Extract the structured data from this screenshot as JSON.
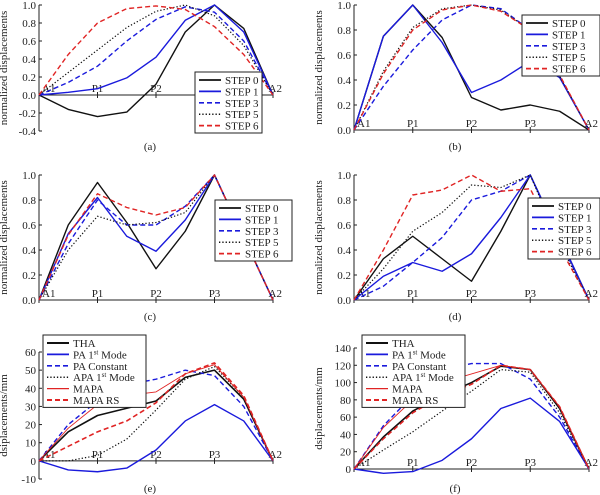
{
  "styles": {
    "STEP 0": {
      "color": "#111111",
      "dash": "solid",
      "width": 1.4
    },
    "STEP 1": {
      "color": "#1a1adc",
      "dash": "solid",
      "width": 1.4
    },
    "STEP 3": {
      "color": "#1a1adc",
      "dash": "dashed",
      "width": 1.4
    },
    "STEP 5": {
      "color": "#111111",
      "dash": "dotted",
      "width": 1.2
    },
    "STEP 6": {
      "color": "#e02424",
      "dash": "dashed",
      "width": 1.4
    },
    "THA": {
      "color": "#111111",
      "dash": "solid",
      "width": 1.6
    },
    "PA 1st Mode": {
      "color": "#1a1adc",
      "dash": "solid",
      "width": 1.4
    },
    "PA Constant": {
      "color": "#1a1adc",
      "dash": "dashed",
      "width": 1.4
    },
    "APA 1st Mode": {
      "color": "#111111",
      "dash": "dotted",
      "width": 1.2
    },
    "MAPA": {
      "color": "#e02424",
      "dash": "solid",
      "width": 0.9
    },
    "MAPA RS": {
      "color": "#e02424",
      "dash": "dashed",
      "width": 1.6
    }
  },
  "chart_data": [
    {
      "panel": "(a)",
      "type": "line",
      "ylabel": "normalized displacements",
      "x": [
        0,
        1,
        2,
        3,
        4,
        5,
        6,
        7,
        8
      ],
      "xticks": [
        {
          "x": 0,
          "label": "A1"
        },
        {
          "x": 2,
          "label": "P1"
        },
        {
          "x": 4,
          "label": "P2"
        },
        {
          "x": 8,
          "label": "A2"
        }
      ],
      "ylim": [
        -0.4,
        1.0
      ],
      "yticks": [
        "-0.4",
        "-0.2",
        "0.0",
        "0.2",
        "0.4",
        "0.6",
        "0.8",
        "1.0"
      ],
      "legend": "bottom-right",
      "series": [
        {
          "name": "STEP 0",
          "values": [
            0,
            -0.16,
            -0.24,
            -0.19,
            0.12,
            0.7,
            1.0,
            0.74,
            0
          ]
        },
        {
          "name": "STEP 1",
          "values": [
            0,
            0.03,
            0.07,
            0.19,
            0.42,
            0.83,
            1.0,
            0.7,
            0
          ]
        },
        {
          "name": "STEP 3",
          "values": [
            0,
            0.14,
            0.32,
            0.6,
            0.84,
            0.98,
            0.92,
            0.6,
            0
          ]
        },
        {
          "name": "STEP 5",
          "values": [
            0,
            0.25,
            0.5,
            0.75,
            0.93,
            1.0,
            0.88,
            0.55,
            0
          ]
        },
        {
          "name": "STEP 6",
          "values": [
            0,
            0.45,
            0.8,
            0.96,
            0.99,
            0.95,
            0.76,
            0.45,
            0
          ]
        }
      ]
    },
    {
      "panel": "(b)",
      "type": "line",
      "ylabel": "normalized displacements",
      "x": [
        0,
        1,
        2,
        3,
        4,
        5,
        6,
        7,
        8
      ],
      "xticks": [
        {
          "x": 0,
          "label": "A1"
        },
        {
          "x": 2,
          "label": "P1"
        },
        {
          "x": 4,
          "label": "P2"
        },
        {
          "x": 6,
          "label": "P3"
        },
        {
          "x": 8,
          "label": "A2"
        }
      ],
      "ylim": [
        0,
        1.0
      ],
      "yticks": [
        "0.0",
        "0.2",
        "0.4",
        "0.6",
        "0.8",
        "1.0"
      ],
      "legend": "top-right",
      "series": [
        {
          "name": "STEP 0",
          "values": [
            0,
            0.75,
            1.0,
            0.74,
            0.26,
            0.16,
            0.2,
            0.15,
            0
          ]
        },
        {
          "name": "STEP 1",
          "values": [
            0,
            0.75,
            1.0,
            0.7,
            0.3,
            0.4,
            0.55,
            0.42,
            0
          ]
        },
        {
          "name": "STEP 3",
          "values": [
            0,
            0.35,
            0.64,
            0.88,
            1.0,
            0.97,
            0.8,
            0.43,
            0
          ]
        },
        {
          "name": "STEP 5",
          "values": [
            0,
            0.47,
            0.82,
            0.97,
            1.0,
            0.96,
            0.8,
            0.43,
            0
          ]
        },
        {
          "name": "STEP 6",
          "values": [
            0,
            0.45,
            0.8,
            0.96,
            1.0,
            0.95,
            0.8,
            0.44,
            0
          ]
        }
      ]
    },
    {
      "panel": "(c)",
      "type": "line",
      "ylabel": "normalized displacements",
      "x": [
        0,
        1,
        2,
        3,
        4,
        5,
        6,
        7,
        8
      ],
      "xticks": [
        {
          "x": 0,
          "label": "A1"
        },
        {
          "x": 2,
          "label": "P1"
        },
        {
          "x": 4,
          "label": "P2"
        },
        {
          "x": 6,
          "label": "P3"
        },
        {
          "x": 8,
          "label": "A2"
        }
      ],
      "ylim": [
        0,
        1.0
      ],
      "yticks": [
        "0.0",
        "0.2",
        "0.4",
        "0.6",
        "0.8",
        "1.0"
      ],
      "legend": "right",
      "series": [
        {
          "name": "STEP 0",
          "values": [
            0,
            0.6,
            0.94,
            0.62,
            0.25,
            0.55,
            1.0,
            0.5,
            0
          ]
        },
        {
          "name": "STEP 1",
          "values": [
            0,
            0.53,
            0.82,
            0.51,
            0.39,
            0.64,
            1.0,
            0.5,
            0
          ]
        },
        {
          "name": "STEP 3",
          "values": [
            0,
            0.45,
            0.8,
            0.6,
            0.6,
            0.75,
            1.0,
            0.5,
            0
          ]
        },
        {
          "name": "STEP 5",
          "values": [
            0,
            0.4,
            0.67,
            0.6,
            0.62,
            0.7,
            1.0,
            0.5,
            0
          ]
        },
        {
          "name": "STEP 6",
          "values": [
            0,
            0.52,
            0.85,
            0.74,
            0.68,
            0.74,
            1.0,
            0.5,
            0
          ]
        }
      ]
    },
    {
      "panel": "(d)",
      "type": "line",
      "ylabel": "normalized displacements",
      "x": [
        0,
        1,
        2,
        3,
        4,
        5,
        6,
        7,
        8
      ],
      "xticks": [
        {
          "x": 0,
          "label": "A1"
        },
        {
          "x": 2,
          "label": "P1"
        },
        {
          "x": 4,
          "label": "P2"
        },
        {
          "x": 6,
          "label": "P3"
        },
        {
          "x": 8,
          "label": "A2"
        }
      ],
      "ylim": [
        0,
        1.0
      ],
      "yticks": [
        "0.0",
        "0.2",
        "0.4",
        "0.6",
        "0.8",
        "1.0"
      ],
      "legend": "right",
      "series": [
        {
          "name": "STEP 0",
          "values": [
            0,
            0.33,
            0.51,
            0.33,
            0.15,
            0.55,
            1.0,
            0.5,
            0
          ]
        },
        {
          "name": "STEP 1",
          "values": [
            0,
            0.19,
            0.3,
            0.23,
            0.37,
            0.66,
            1.0,
            0.5,
            0
          ]
        },
        {
          "name": "STEP 3",
          "values": [
            0,
            0.11,
            0.3,
            0.5,
            0.8,
            0.87,
            1.0,
            0.48,
            0
          ]
        },
        {
          "name": "STEP 5",
          "values": [
            0,
            0.25,
            0.55,
            0.7,
            0.92,
            0.9,
            1.0,
            0.45,
            0
          ]
        },
        {
          "name": "STEP 6",
          "values": [
            0,
            0.4,
            0.84,
            0.88,
            1.0,
            0.87,
            0.89,
            0.42,
            0
          ]
        }
      ]
    },
    {
      "panel": "(e)",
      "type": "line",
      "ylabel": "dsiplacements/mm",
      "x": [
        0,
        1,
        2,
        3,
        4,
        5,
        6,
        7,
        8
      ],
      "xticks": [
        {
          "x": 0,
          "label": "A1"
        },
        {
          "x": 2,
          "label": "P1"
        },
        {
          "x": 4,
          "label": "P2"
        },
        {
          "x": 6,
          "label": "P3"
        },
        {
          "x": 8,
          "label": "A2"
        }
      ],
      "ylim": [
        -10,
        60
      ],
      "yticks": [
        "-10",
        "0",
        "10",
        "20",
        "30",
        "40",
        "50",
        "60"
      ],
      "legend": "top-left",
      "series": [
        {
          "name": "THA",
          "values": [
            0,
            16,
            25,
            29,
            33,
            46,
            50,
            34,
            0
          ]
        },
        {
          "name": "PA 1st Mode",
          "values": [
            0,
            -5,
            -6,
            -4,
            6,
            22,
            31,
            22,
            0
          ]
        },
        {
          "name": "PA Constant",
          "values": [
            0,
            20,
            33,
            42,
            45,
            50,
            47,
            30,
            0
          ]
        },
        {
          "name": "APA 1st Mode",
          "values": [
            0,
            0,
            3,
            12,
            28,
            45,
            52,
            35,
            0
          ]
        },
        {
          "name": "MAPA",
          "values": [
            0,
            18,
            31,
            36,
            38,
            48,
            53,
            35,
            0
          ]
        },
        {
          "name": "MAPA RS",
          "values": [
            0,
            8,
            16,
            22,
            32,
            48,
            54,
            36,
            0
          ]
        }
      ]
    },
    {
      "panel": "(f)",
      "type": "line",
      "ylabel": "dsiplacements/mm",
      "x": [
        0,
        1,
        2,
        3,
        4,
        5,
        6,
        7,
        8
      ],
      "xticks": [
        {
          "x": 0,
          "label": "A1"
        },
        {
          "x": 2,
          "label": "P1"
        },
        {
          "x": 4,
          "label": "P2"
        },
        {
          "x": 6,
          "label": "P3"
        },
        {
          "x": 8,
          "label": "A2"
        }
      ],
      "ylim": [
        0,
        140
      ],
      "yticks": [
        "0",
        "20",
        "40",
        "60",
        "80",
        "100",
        "120",
        "140"
      ],
      "legend": "top-left",
      "series": [
        {
          "name": "THA",
          "values": [
            0,
            37,
            67,
            85,
            100,
            119,
            115,
            70,
            0
          ]
        },
        {
          "name": "PA 1st Mode",
          "values": [
            0,
            -5,
            -3,
            10,
            35,
            70,
            82,
            55,
            0
          ]
        },
        {
          "name": "PA Constant",
          "values": [
            0,
            50,
            85,
            115,
            122,
            122,
            104,
            60,
            0
          ]
        },
        {
          "name": "APA 1st Mode",
          "values": [
            0,
            22,
            43,
            67,
            90,
            115,
            112,
            65,
            0
          ]
        },
        {
          "name": "MAPA",
          "values": [
            0,
            48,
            80,
            100,
            110,
            120,
            115,
            72,
            0
          ]
        },
        {
          "name": "MAPA RS",
          "values": [
            0,
            35,
            65,
            85,
            98,
            120,
            115,
            72,
            0
          ]
        }
      ]
    }
  ]
}
